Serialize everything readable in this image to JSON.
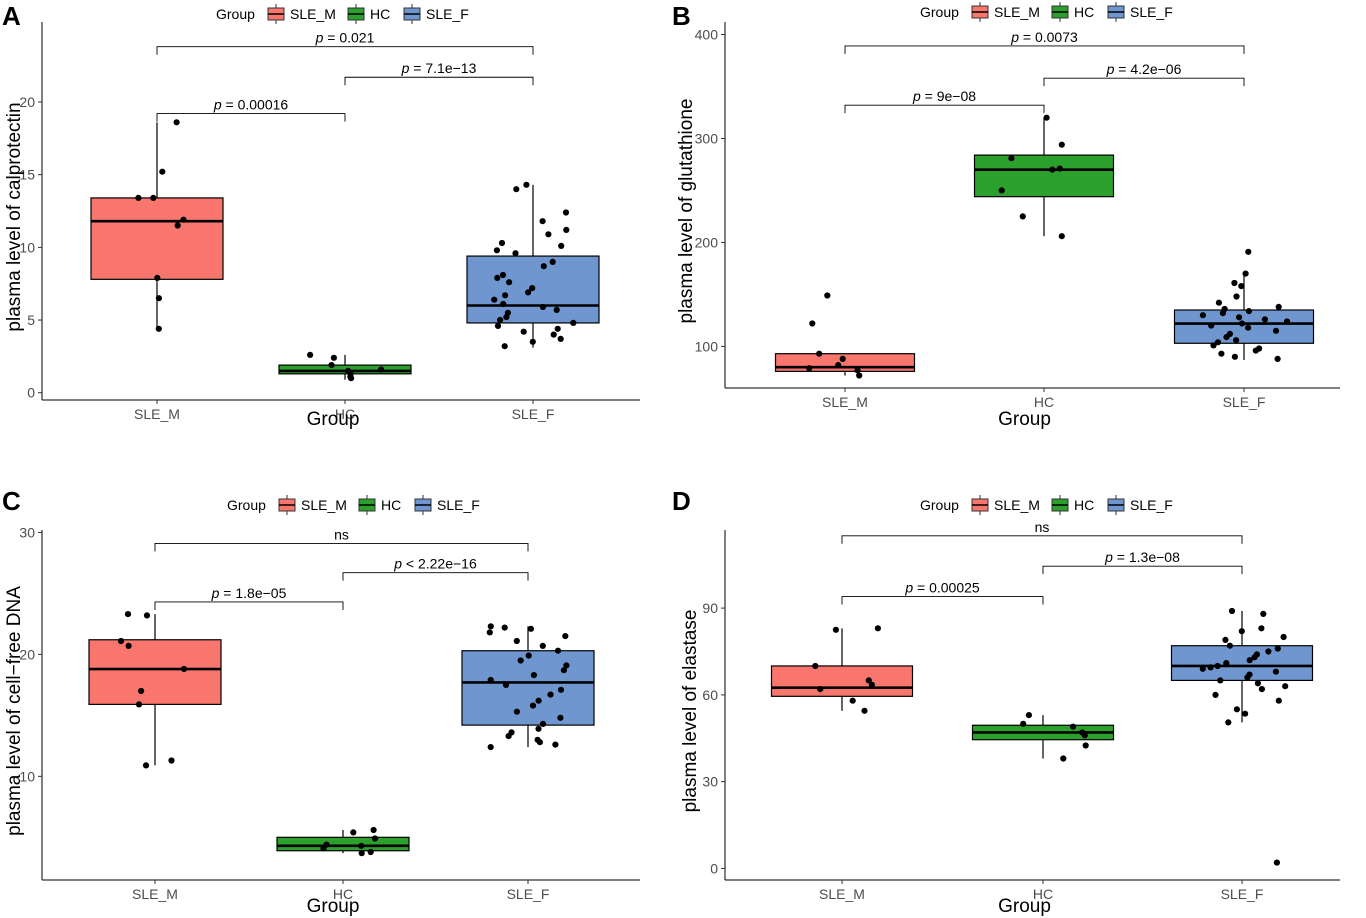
{
  "colors": {
    "SLE_M": "#F8766D",
    "HC": "#2CA02C",
    "SLE_F": "#6F96CF"
  },
  "legend": {
    "title": "Group",
    "items": [
      "SLE_M",
      "HC",
      "SLE_F"
    ]
  },
  "chart_data": [
    {
      "type": "box",
      "panel": "A",
      "xlabel": "Group",
      "ylabel": "plasma level of calprotectin",
      "ylim": [
        -0.5,
        25.5
      ],
      "yticks": [
        0,
        5,
        10,
        15,
        20
      ],
      "categories": [
        "SLE_M",
        "HC",
        "SLE_F"
      ],
      "boxes": [
        {
          "group": "SLE_M",
          "q1": 7.8,
          "median": 11.8,
          "q3": 13.4,
          "whisker_low": 4.4,
          "whisker_high": 18.6
        },
        {
          "group": "HC",
          "q1": 1.3,
          "median": 1.5,
          "q3": 1.9,
          "whisker_low": 0.9,
          "whisker_high": 2.6
        },
        {
          "group": "SLE_F",
          "q1": 4.8,
          "median": 6.0,
          "q3": 9.4,
          "whisker_low": 3.1,
          "whisker_high": 14.3
        }
      ],
      "points": [
        {
          "group": "SLE_M",
          "values": [
            18.6,
            15.2,
            13.4,
            13.4,
            11.9,
            11.5,
            7.9,
            6.5,
            4.4
          ]
        },
        {
          "group": "HC",
          "values": [
            2.6,
            2.4,
            1.9,
            1.6,
            1.5,
            1.3,
            1.1,
            1.0
          ]
        },
        {
          "group": "SLE_F",
          "values": [
            14.3,
            14.0,
            12.4,
            11.8,
            11.2,
            10.9,
            10.3,
            10.1,
            9.8,
            9.6,
            9.0,
            8.7,
            8.1,
            7.9,
            7.6,
            7.2,
            6.9,
            6.7,
            6.4,
            6.1,
            5.9,
            5.7,
            5.5,
            5.2,
            5.0,
            4.8,
            4.6,
            4.4,
            4.2,
            4.0,
            3.7,
            3.5,
            3.2
          ]
        }
      ],
      "comparisons": [
        {
          "from": "SLE_M",
          "to": "HC",
          "label": "p = 0.00016",
          "y": 19.2
        },
        {
          "from": "HC",
          "to": "SLE_F",
          "label": "p = 7.1e−13",
          "y": 21.7
        },
        {
          "from": "SLE_M",
          "to": "SLE_F",
          "label": "p = 0.021",
          "y": 23.8
        }
      ]
    },
    {
      "type": "box",
      "panel": "B",
      "xlabel": "Group",
      "ylabel": "plasma level of glutathione",
      "ylim": [
        60,
        412
      ],
      "yticks": [
        100,
        200,
        300,
        400
      ],
      "categories": [
        "SLE_M",
        "HC",
        "SLE_F"
      ],
      "boxes": [
        {
          "group": "SLE_M",
          "q1": 76,
          "median": 80,
          "q3": 93,
          "whisker_low": 72,
          "whisker_high": 93
        },
        {
          "group": "HC",
          "q1": 244,
          "median": 270,
          "q3": 284,
          "whisker_low": 206,
          "whisker_high": 320
        },
        {
          "group": "SLE_F",
          "q1": 103,
          "median": 122,
          "q3": 135,
          "whisker_low": 87,
          "whisker_high": 170
        }
      ],
      "points": [
        {
          "group": "SLE_M",
          "values": [
            149,
            122,
            93,
            88,
            82,
            79,
            77,
            72
          ]
        },
        {
          "group": "HC",
          "values": [
            320,
            294,
            281,
            271,
            270,
            250,
            225,
            206
          ]
        },
        {
          "group": "SLE_F",
          "values": [
            191,
            170,
            161,
            158,
            148,
            142,
            138,
            136,
            134,
            132,
            130,
            128,
            126,
            124,
            122,
            120,
            118,
            115,
            112,
            109,
            106,
            104,
            101,
            98,
            96,
            93,
            90,
            88
          ]
        }
      ],
      "comparisons": [
        {
          "from": "SLE_M",
          "to": "HC",
          "label": "p = 9e−08",
          "y": 332
        },
        {
          "from": "HC",
          "to": "SLE_F",
          "label": "p = 4.2e−06",
          "y": 358
        },
        {
          "from": "SLE_M",
          "to": "SLE_F",
          "label": "p = 0.0073",
          "y": 389
        }
      ]
    },
    {
      "type": "box",
      "panel": "C",
      "xlabel": "Group",
      "ylabel": "plasma level of cell−free DNA",
      "ylim": [
        1.5,
        30.2
      ],
      "yticks": [
        10,
        20,
        30
      ],
      "categories": [
        "SLE_M",
        "HC",
        "SLE_F"
      ],
      "boxes": [
        {
          "group": "SLE_M",
          "q1": 15.9,
          "median": 18.8,
          "q3": 21.2,
          "whisker_low": 10.9,
          "whisker_high": 23.3
        },
        {
          "group": "HC",
          "q1": 3.9,
          "median": 4.3,
          "q3": 5.0,
          "whisker_low": 3.7,
          "whisker_high": 5.6
        },
        {
          "group": "SLE_F",
          "q1": 14.2,
          "median": 17.7,
          "q3": 20.3,
          "whisker_low": 12.4,
          "whisker_high": 22.3
        }
      ],
      "points": [
        {
          "group": "SLE_M",
          "values": [
            23.3,
            23.2,
            21.1,
            20.7,
            18.8,
            17.0,
            15.9,
            11.3,
            10.9
          ]
        },
        {
          "group": "HC",
          "values": [
            5.6,
            5.4,
            4.9,
            4.4,
            4.3,
            4.1,
            3.8,
            3.7
          ]
        },
        {
          "group": "SLE_F",
          "values": [
            22.3,
            22.2,
            22.1,
            21.8,
            21.5,
            21.1,
            20.7,
            20.3,
            19.9,
            19.5,
            19.1,
            18.7,
            18.3,
            17.9,
            17.5,
            17.1,
            16.7,
            16.2,
            15.8,
            15.3,
            14.8,
            14.3,
            13.9,
            13.6,
            13.3,
            13.0,
            12.8,
            12.6,
            12.4
          ]
        }
      ],
      "comparisons": [
        {
          "from": "SLE_M",
          "to": "HC",
          "label": "p = 1.8e−05",
          "y": 24.3
        },
        {
          "from": "HC",
          "to": "SLE_F",
          "label": "p < 2.22e−16",
          "y": 26.7
        },
        {
          "from": "SLE_M",
          "to": "SLE_F",
          "label": "ns",
          "y": 29.1
        }
      ]
    },
    {
      "type": "box",
      "panel": "D",
      "xlabel": "Group",
      "ylabel": "plasma level of elastase",
      "ylim": [
        -4,
        117
      ],
      "yticks": [
        0,
        30,
        60,
        90
      ],
      "categories": [
        "SLE_M",
        "HC",
        "SLE_F"
      ],
      "boxes": [
        {
          "group": "SLE_M",
          "q1": 59.5,
          "median": 62.5,
          "q3": 70,
          "whisker_low": 54.5,
          "whisker_high": 83
        },
        {
          "group": "HC",
          "q1": 44.5,
          "median": 47,
          "q3": 49.5,
          "whisker_low": 38,
          "whisker_high": 53
        },
        {
          "group": "SLE_F",
          "q1": 65,
          "median": 70,
          "q3": 77,
          "whisker_low": 50.5,
          "whisker_high": 89
        }
      ],
      "points": [
        {
          "group": "SLE_M",
          "values": [
            83,
            82.5,
            70,
            65,
            63.5,
            62,
            58,
            54.5
          ]
        },
        {
          "group": "HC",
          "values": [
            53,
            50,
            49,
            47,
            46,
            42.5,
            38
          ]
        },
        {
          "group": "SLE_F",
          "values": [
            89,
            88,
            83,
            82,
            80,
            79,
            77,
            76,
            75,
            74,
            73,
            72,
            71,
            70,
            69.5,
            69,
            68,
            67,
            66,
            65,
            64,
            63,
            62,
            60,
            58,
            55,
            53.5,
            50.5,
            2
          ]
        }
      ],
      "comparisons": [
        {
          "from": "SLE_M",
          "to": "HC",
          "label": "p = 0.00025",
          "y": 94
        },
        {
          "from": "HC",
          "to": "SLE_F",
          "label": "p = 1.3e−08",
          "y": 104.5
        },
        {
          "from": "SLE_M",
          "to": "SLE_F",
          "label": "ns",
          "y": 115
        }
      ]
    }
  ]
}
